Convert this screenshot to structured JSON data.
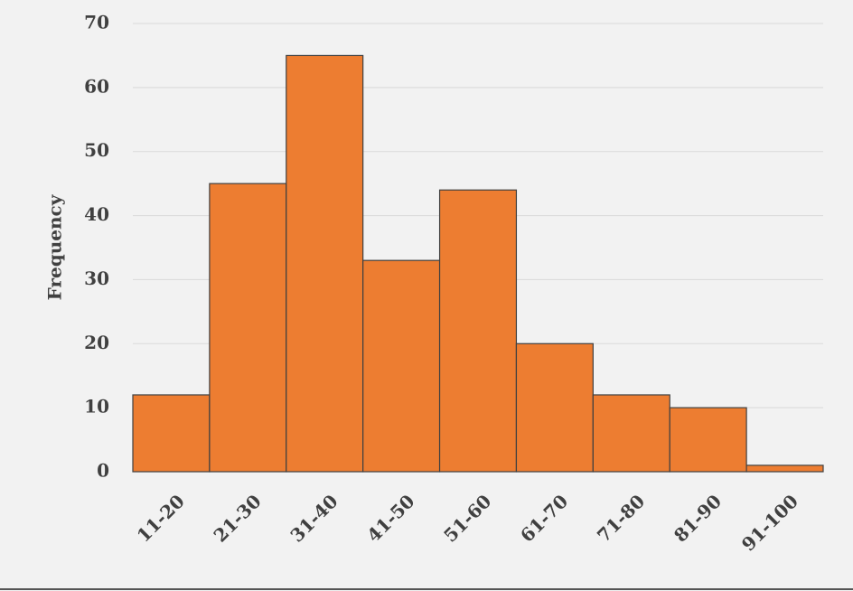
{
  "chart_data": {
    "type": "bar",
    "y_label": "Frequency",
    "categories": [
      "11-20",
      "21-30",
      "31-40",
      "41-50",
      "51-60",
      "61-70",
      "71-80",
      "81-90",
      "91-100"
    ],
    "values": [
      12,
      45,
      65,
      33,
      44,
      20,
      12,
      10,
      1
    ],
    "color": "#ed7d31",
    "ylim": [
      0,
      70
    ],
    "yticks": [
      0,
      10,
      20,
      30,
      40,
      50,
      60,
      70
    ],
    "grid": true
  }
}
